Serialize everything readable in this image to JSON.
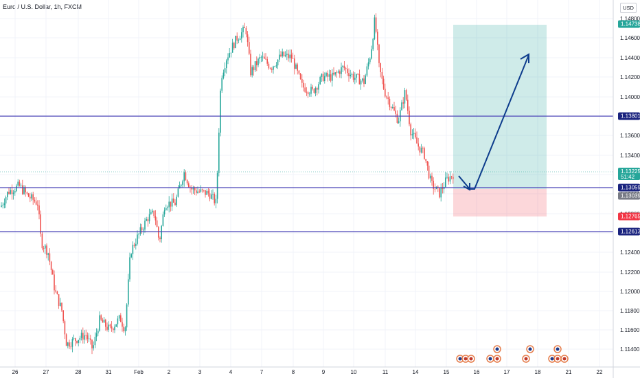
{
  "header": {
    "symbol_title": "Euro / U.S. Dollar, 1h, FXCM",
    "currency_label": "USD"
  },
  "price_axis": {
    "ticks": [
      "1.14800",
      "1.14600",
      "1.14400",
      "1.14200",
      "1.14000",
      "1.13800",
      "1.13600",
      "1.13400",
      "1.13200",
      "1.13000",
      "1.12800",
      "1.12600",
      "1.12400",
      "1.12200",
      "1.12000",
      "1.11800",
      "1.11600",
      "1.11400"
    ]
  },
  "time_axis": {
    "ticks": [
      "26",
      "27",
      "28",
      "31",
      "Feb",
      "2",
      "3",
      "4",
      "7",
      "8",
      "9",
      "10",
      "11",
      "14",
      "15",
      "16",
      "17",
      "18",
      "21",
      "22"
    ]
  },
  "price_tags": {
    "target": {
      "value": "1.14738",
      "color": "#26a69a"
    },
    "level_top": {
      "value": "1.13801",
      "color": "#1a237e"
    },
    "current": {
      "value": "1.13225",
      "countdown": "51:42",
      "color": "#26a69a"
    },
    "entry": {
      "value": "1.13059",
      "color": "#1a237e"
    },
    "entry_gray": {
      "value": "1.13039",
      "color": "#787b86"
    },
    "stop": {
      "value": "1.12765",
      "color": "#f23645"
    },
    "level_bottom": {
      "value": "1.12613",
      "color": "#1a237e"
    }
  },
  "chart_data": {
    "type": "candlestick",
    "symbol": "EURUSD",
    "timeframe": "1h",
    "ylim": [
      1.113,
      1.149
    ],
    "horizontal_levels": [
      1.13801,
      1.13059,
      1.12613
    ],
    "position": {
      "direction": "long",
      "entry": 1.13059,
      "target": 1.14738,
      "stop": 1.12765
    }
  }
}
